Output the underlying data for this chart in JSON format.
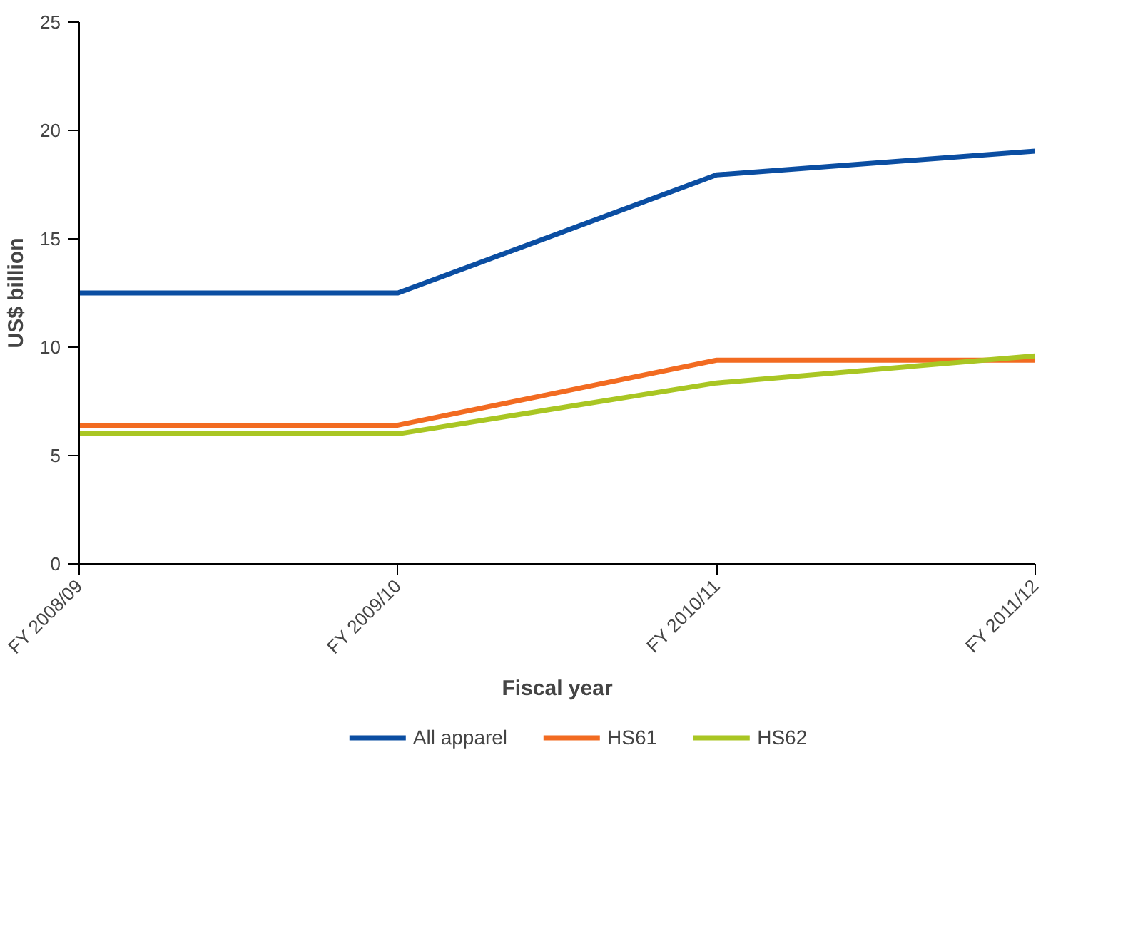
{
  "chart_data": {
    "type": "line",
    "xlabel": "Fiscal year",
    "ylabel": "US$ billion",
    "categories": [
      "FY 2008/09",
      "FY 2009/10",
      "FY 2010/11",
      "FY 2011/12"
    ],
    "series": [
      {
        "name": "All apparel",
        "color": "#0b4ea2",
        "values": [
          12.5,
          12.5,
          17.95,
          19.05
        ]
      },
      {
        "name": "HS61",
        "color": "#f26b21",
        "values": [
          6.4,
          6.4,
          9.4,
          9.4
        ]
      },
      {
        "name": "HS62",
        "color": "#a9c623",
        "values": [
          6.0,
          6.0,
          8.35,
          9.6
        ]
      }
    ],
    "ylim": [
      0,
      25
    ],
    "yticks": [
      0,
      5,
      10,
      15,
      20,
      25
    ],
    "grid": false,
    "legend": "bottom",
    "marker": "none",
    "line_style": "solid"
  }
}
